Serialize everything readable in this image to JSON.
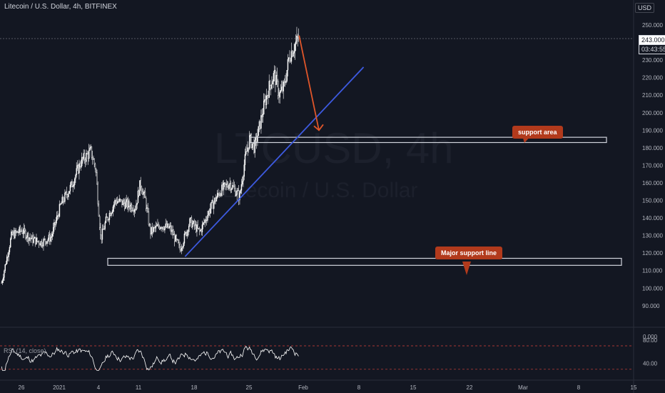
{
  "header": {
    "title": "Litecoin / U.S. Dollar, 4h, BITFINEX",
    "currency": "USD",
    "top_axis_cut": "2"
  },
  "watermark": {
    "symbol": "LTCUSD, 4h",
    "name": "Litecoin / U.S. Dollar"
  },
  "price_axis": {
    "ticks": [
      "250.000",
      "240.000",
      "230.000",
      "220.000",
      "210.000",
      "200.000",
      "190.000",
      "180.000",
      "170.000",
      "160.000",
      "150.000",
      "140.000",
      "130.000",
      "120.000",
      "110.000",
      "100.000",
      "90.000"
    ],
    "current_price": "243.000",
    "countdown": "03:43:55"
  },
  "rsi_axis": {
    "label": "RSI (14, close)",
    "ticks": [
      "80.00",
      "40.00"
    ],
    "zero_label": "0.000"
  },
  "time_axis": {
    "ticks": [
      "26",
      "2021",
      "4",
      "11",
      "18",
      "25",
      "Feb",
      "8",
      "15",
      "22",
      "Mar",
      "8",
      "15"
    ]
  },
  "annotations": {
    "support_area": "support area",
    "major_support": "Major support line"
  },
  "colors": {
    "background": "#131722",
    "candle": "#ffffff",
    "trendline": "#3d5ae0",
    "arrow": "#e0562a",
    "callout": "#b23a1c",
    "support_box": "#d1d4dc",
    "rsi_line": "#ffffff",
    "rsi_band": "#d9413b"
  },
  "chart_data": {
    "type": "candlestick",
    "instrument": "LTCUSD",
    "interval": "4h",
    "ylim": [
      85,
      255
    ],
    "grid": false,
    "close_path": [
      [
        "2020-12-22",
        103
      ],
      [
        "2020-12-24",
        130
      ],
      [
        "2020-12-26",
        133
      ],
      [
        "2020-12-28",
        128
      ],
      [
        "2020-12-30",
        126
      ],
      [
        "2021-01-01",
        129
      ],
      [
        "2021-01-03",
        148
      ],
      [
        "2021-01-05",
        158
      ],
      [
        "2021-01-07",
        172
      ],
      [
        "2021-01-09",
        178
      ],
      [
        "2021-01-10",
        168
      ],
      [
        "2021-01-11",
        128
      ],
      [
        "2021-01-12",
        138
      ],
      [
        "2021-01-14",
        150
      ],
      [
        "2021-01-16",
        148
      ],
      [
        "2021-01-18",
        146
      ],
      [
        "2021-01-19",
        160
      ],
      [
        "2021-01-20",
        150
      ],
      [
        "2021-01-21",
        132
      ],
      [
        "2021-01-23",
        136
      ],
      [
        "2021-01-25",
        134
      ],
      [
        "2021-01-27",
        122
      ],
      [
        "2021-01-29",
        138
      ],
      [
        "2021-01-31",
        132
      ],
      [
        "2021-02-02",
        145
      ],
      [
        "2021-02-04",
        155
      ],
      [
        "2021-02-06",
        160
      ],
      [
        "2021-02-08",
        152
      ],
      [
        "2021-02-09",
        172
      ],
      [
        "2021-02-10",
        185
      ],
      [
        "2021-02-11",
        180
      ],
      [
        "2021-02-12",
        192
      ],
      [
        "2021-02-13",
        205
      ],
      [
        "2021-02-14",
        215
      ],
      [
        "2021-02-15",
        222
      ],
      [
        "2021-02-16",
        210
      ],
      [
        "2021-02-17",
        215
      ],
      [
        "2021-02-18",
        232
      ],
      [
        "2021-02-19",
        238
      ],
      [
        "2021-02-20",
        243
      ]
    ],
    "last_price": 243.0,
    "support_area_range": [
      183,
      186
    ],
    "major_support_range": [
      113,
      117
    ],
    "trendline": [
      [
        "2021-01-28",
        118
      ],
      [
        "2021-03-05",
        226
      ]
    ],
    "projection_arrow": [
      [
        "2021-02-20",
        244
      ],
      [
        "2021-02-24",
        190
      ]
    ],
    "rsi": {
      "period": 14,
      "upper_band": 70,
      "lower_band": 30
    }
  }
}
